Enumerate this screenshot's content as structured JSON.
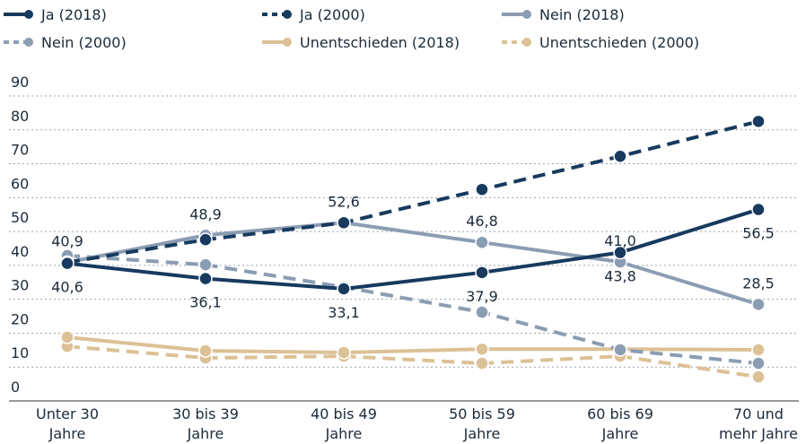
{
  "chart_data": {
    "type": "line",
    "categories": [
      "Unter 30\nJahre",
      "30 bis 39\nJahre",
      "40 bis 49\nJahre",
      "50 bis 59\nJahre",
      "60 bis 69\nJahre",
      "70 und\nmehr Jahre"
    ],
    "ylim": [
      0,
      90
    ],
    "yticks": [
      0,
      10,
      20,
      30,
      40,
      50,
      60,
      70,
      80,
      90
    ],
    "grid": true,
    "series": [
      {
        "name": "Ja (2018)",
        "color": "#173a5e",
        "dashed": false,
        "values": [
          40.6,
          36.1,
          33.1,
          37.9,
          43.8,
          56.5
        ],
        "value_labels": [
          "40,6",
          "36,1",
          "33,1",
          "37,9",
          "43,8",
          "56,5"
        ]
      },
      {
        "name": "Ja (2000)",
        "color": "#173a5e",
        "dashed": true,
        "values": [
          40.9,
          47.6,
          52.6,
          62.4,
          72.2,
          82.5
        ]
      },
      {
        "name": "Nein (2018)",
        "color": "#8b9db3",
        "dashed": false,
        "values": [
          40.9,
          48.9,
          52.6,
          46.8,
          41.0,
          28.5
        ],
        "value_labels": [
          "40,9",
          "48,9",
          "52,6",
          "46,8",
          "41,0",
          "28,5"
        ]
      },
      {
        "name": "Nein (2000)",
        "color": "#8b9db3",
        "dashed": true,
        "values": [
          42.9,
          40.2,
          33.6,
          26.2,
          15.1,
          11.1
        ]
      },
      {
        "name": "Unentschieden (2018)",
        "color": "#dcc196",
        "dashed": false,
        "values": [
          18.8,
          14.8,
          14.3,
          15.3,
          15.3,
          15.1
        ]
      },
      {
        "name": "Unentschieden (2000)",
        "color": "#dcc196",
        "dashed": true,
        "values": [
          16.1,
          12.7,
          13.2,
          11.1,
          13.2,
          7.1
        ]
      }
    ]
  }
}
